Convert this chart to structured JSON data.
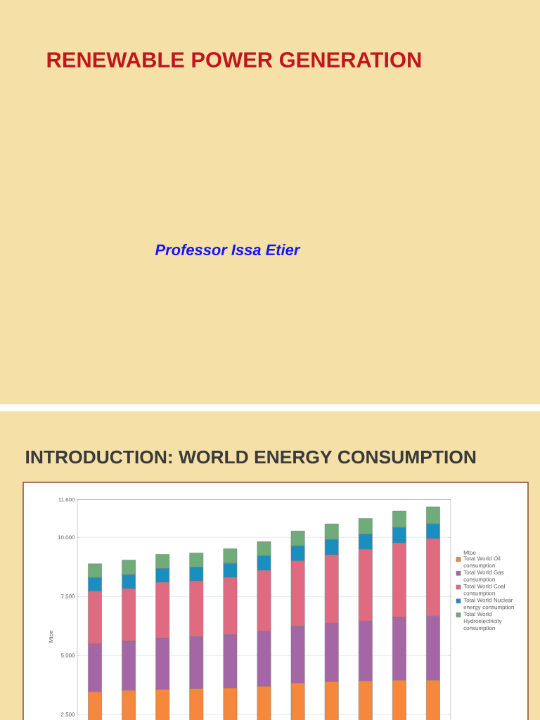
{
  "chart_data": {
    "type": "bar",
    "title": "INTRODUCTION: WORLD ENERGY CONSUMPTION",
    "annotations": [
      "RENEWABLE POWER GENERATION",
      "Professor Issa Etier"
    ],
    "ylabel": "Mtoe",
    "legend_title": "Mtoe",
    "categories": [
      null,
      null,
      null,
      null,
      null,
      null,
      null,
      null,
      null,
      null,
      null
    ],
    "stacked": true,
    "grid": "y",
    "legend": "right",
    "ylim": [
      0,
      11600
    ],
    "yticks": [
      {
        "value": 2500,
        "label": "2.500"
      },
      {
        "value": 5000,
        "label": "5.000"
      },
      {
        "value": 7500,
        "label": "7.500"
      },
      {
        "value": 10000,
        "label": "10.000"
      },
      {
        "value": 11600,
        "label": "11.600"
      }
    ],
    "series": [
      {
        "name": "Total World Oil consumption",
        "color": "#f5883c",
        "values": [
          3460,
          3520,
          3560,
          3590,
          3620,
          3690,
          3830,
          3890,
          3920,
          3950,
          3950
        ]
      },
      {
        "name": "Total World Gas consumption",
        "color": "#a566a5",
        "values": [
          2020,
          2080,
          2160,
          2200,
          2260,
          2340,
          2410,
          2470,
          2530,
          2660,
          2710
        ]
      },
      {
        "name": "Total World Coal consumption",
        "color": "#e06b80",
        "values": [
          2240,
          2230,
          2370,
          2370,
          2420,
          2570,
          2760,
          2900,
          3050,
          3160,
          3290
        ]
      },
      {
        "name": "Total World Nuclear energy consumption",
        "color": "#1a8fbf",
        "values": [
          580,
          590,
          590,
          580,
          600,
          620,
          640,
          650,
          640,
          650,
          620
        ]
      },
      {
        "name": "Total World Hydroelectricity consumption",
        "color": "#6fac7a",
        "values": [
          580,
          620,
          600,
          600,
          620,
          600,
          630,
          660,
          660,
          690,
          720
        ]
      }
    ]
  }
}
